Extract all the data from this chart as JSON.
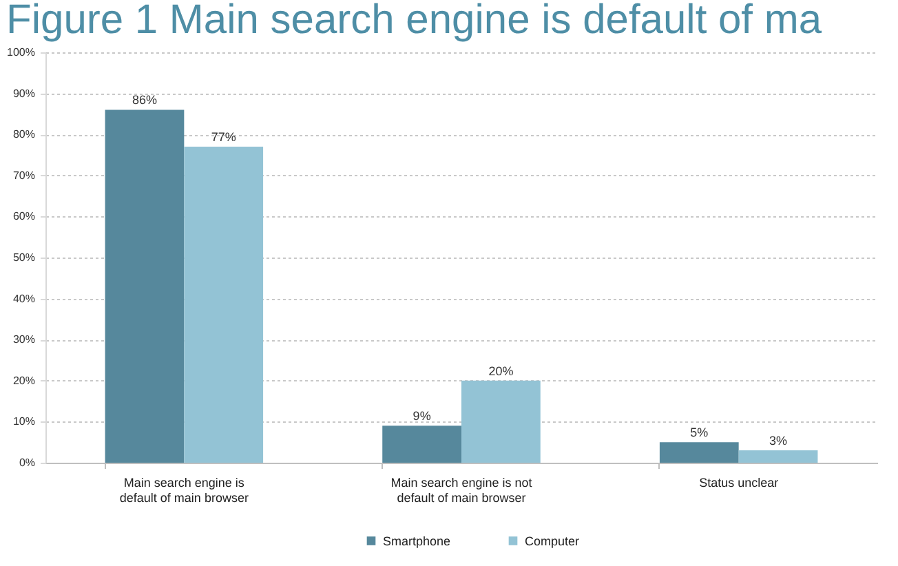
{
  "chart_data": {
    "type": "bar",
    "title": "Figure 1 Main search engine is default of ma",
    "categories": [
      "Main search engine is default of main browser",
      "Main search engine is not default of main browser",
      "Status unclear"
    ],
    "series": [
      {
        "name": "Smartphone",
        "color": "#56889c",
        "values": [
          86,
          9,
          5
        ],
        "value_labels": [
          "86%",
          "9%",
          "5%"
        ]
      },
      {
        "name": "Computer",
        "color": "#93c3d5",
        "values": [
          77,
          20,
          3
        ],
        "value_labels": [
          "77%",
          "20%",
          "3%"
        ]
      }
    ],
    "ylim": [
      0,
      100
    ],
    "yticks": [
      {
        "value": 0,
        "label": "0%"
      },
      {
        "value": 10,
        "label": "10%"
      },
      {
        "value": 20,
        "label": "20%"
      },
      {
        "value": 30,
        "label": "30%"
      },
      {
        "value": 40,
        "label": "40%"
      },
      {
        "value": 50,
        "label": "50%"
      },
      {
        "value": 60,
        "label": "60%"
      },
      {
        "value": 70,
        "label": "70%"
      },
      {
        "value": 80,
        "label": "80%"
      },
      {
        "value": 90,
        "label": "90%"
      },
      {
        "value": 100,
        "label": "100%"
      }
    ],
    "grid": "y",
    "legend": "bottom"
  }
}
